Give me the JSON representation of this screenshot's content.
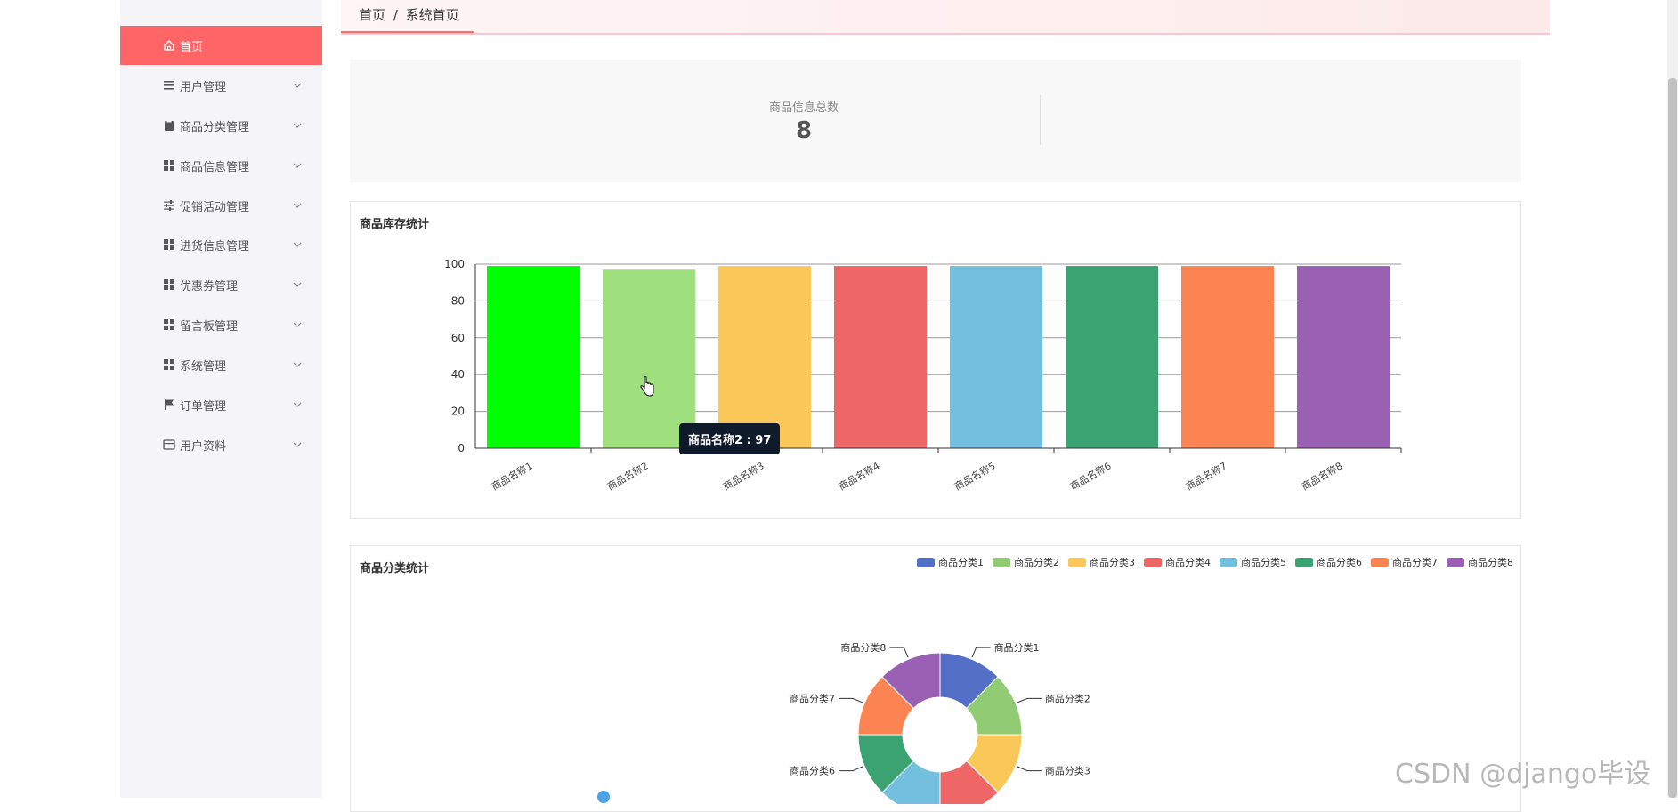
{
  "sidebar": {
    "items": [
      {
        "label": "首页",
        "icon": "home-icon",
        "active": true
      },
      {
        "label": "用户管理",
        "icon": "list-icon"
      },
      {
        "label": "商品分类管理",
        "icon": "clipboard-icon"
      },
      {
        "label": "商品信息管理",
        "icon": "grid-icon"
      },
      {
        "label": "促销活动管理",
        "icon": "sliders-icon"
      },
      {
        "label": "进货信息管理",
        "icon": "grid-icon"
      },
      {
        "label": "优惠券管理",
        "icon": "grid-icon"
      },
      {
        "label": "留言板管理",
        "icon": "grid-icon"
      },
      {
        "label": "系统管理",
        "icon": "grid-icon"
      },
      {
        "label": "订单管理",
        "icon": "flag-icon"
      },
      {
        "label": "用户资料",
        "icon": "card-icon"
      }
    ]
  },
  "breadcrumb": {
    "home": "首页",
    "sep": "/",
    "current": "系统首页"
  },
  "stat": {
    "label": "商品信息总数",
    "value": "8"
  },
  "bar_panel_title": "商品库存统计",
  "pie_panel_title": "商品分类统计",
  "tooltip": {
    "text": "商品名称2 : 97"
  },
  "watermark": "CSDN @django毕设",
  "colors": {
    "accent": "#ff6567"
  },
  "chart_data": [
    {
      "type": "bar",
      "title": "商品库存统计",
      "categories": [
        "商品名称1",
        "商品名称2",
        "商品名称3",
        "商品名称4",
        "商品名称5",
        "商品名称6",
        "商品名称7",
        "商品名称8"
      ],
      "values": [
        99,
        97,
        99,
        99,
        99,
        99,
        99,
        99
      ],
      "colors": [
        "#00ff00",
        "#9fdf7d",
        "#fac858",
        "#ee6666",
        "#73c0de",
        "#3ba272",
        "#fc8452",
        "#9a60b4"
      ],
      "yticks": [
        0,
        20,
        40,
        60,
        80,
        100
      ],
      "ylim": [
        0,
        100
      ],
      "grid": true
    },
    {
      "type": "pie",
      "title": "商品分类统计",
      "labels": [
        "商品分类1",
        "商品分类2",
        "商品分类3",
        "商品分类4",
        "商品分类5",
        "商品分类6",
        "商品分类7",
        "商品分类8"
      ],
      "values": [
        1,
        1,
        1,
        1,
        1,
        1,
        1,
        1
      ],
      "colors": [
        "#5470c6",
        "#91cc75",
        "#fac858",
        "#ee6666",
        "#73c0de",
        "#3ba272",
        "#fc8452",
        "#9a60b4"
      ],
      "legend": "top-right"
    }
  ]
}
